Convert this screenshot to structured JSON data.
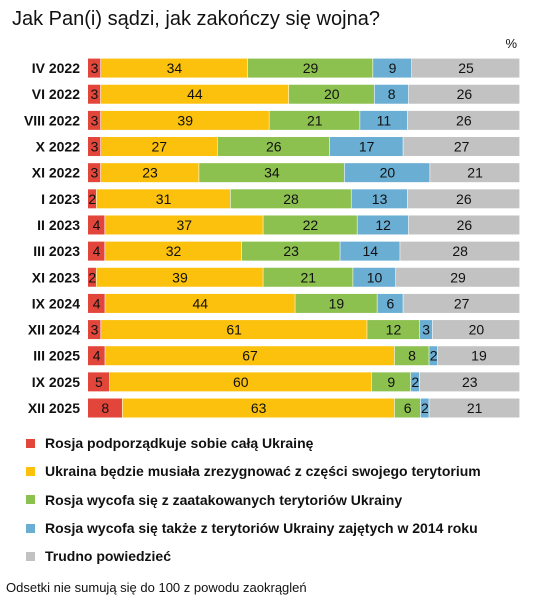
{
  "title": "Jak Pan(i) sądzi, jak zakończy się wojna?",
  "unit": "%",
  "note": "Odsetki nie sumują się do 100 z powodu zaokrągleń",
  "chart_data": {
    "type": "bar",
    "orientation": "horizontal",
    "stacked": true,
    "categories": [
      "IV 2022",
      "VI 2022",
      "VIII 2022",
      "X 2022",
      "XI 2022",
      "I 2023",
      "II 2023",
      "III 2023",
      "XI 2023",
      "IX 2024",
      "XII 2024",
      "III 2025",
      "IX 2025",
      "XII 2025"
    ],
    "series": [
      {
        "name": "Rosja podporządkuje sobie całą Ukrainę",
        "color": "#e2463b",
        "values": [
          3,
          3,
          3,
          3,
          3,
          2,
          4,
          4,
          2,
          4,
          3,
          4,
          5,
          8
        ]
      },
      {
        "name": "Ukraina będzie musiała zrezygnować z części swojego terytorium",
        "color": "#fcc10d",
        "values": [
          34,
          44,
          39,
          27,
          23,
          31,
          37,
          32,
          39,
          44,
          61,
          67,
          60,
          63
        ]
      },
      {
        "name": "Rosja wycofa się z zaatakowanych terytoriów Ukrainy",
        "color": "#8cc04f",
        "values": [
          29,
          20,
          21,
          26,
          34,
          28,
          22,
          23,
          21,
          19,
          12,
          8,
          9,
          6
        ]
      },
      {
        "name": "Rosja wycofa się także z terytoriów Ukrainy zajętych w 2014 roku",
        "color": "#6aaed4",
        "values": [
          9,
          8,
          11,
          17,
          20,
          13,
          12,
          14,
          10,
          6,
          3,
          2,
          2,
          2
        ]
      },
      {
        "name": "Trudno powiedzieć",
        "color": "#c2c2c2",
        "values": [
          25,
          26,
          26,
          27,
          21,
          26,
          26,
          28,
          29,
          27,
          20,
          19,
          23,
          21
        ]
      }
    ],
    "legend_position": "bottom",
    "grid": false
  }
}
